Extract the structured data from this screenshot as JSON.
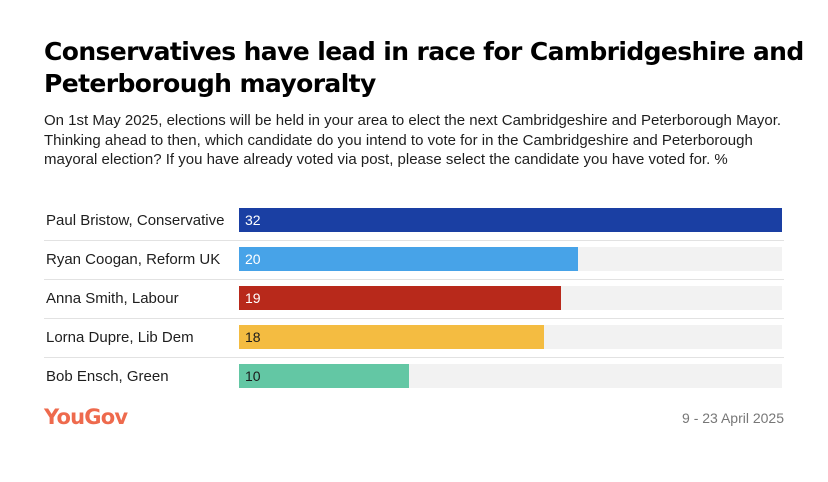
{
  "header": {
    "title": "Conservatives have lead in race for Cambridgeshire and Peterborough mayoralty",
    "subtitle": "On 1st May 2025, elections will be held in your area to elect the next Cambridgeshire and Peterborough Mayor. Thinking ahead to then, which candidate do you intend to vote for in the Cambridgeshire and Peterborough mayoral election? If you have already voted via post, please select the candidate you have voted for. %"
  },
  "chart_data": {
    "type": "bar",
    "orientation": "horizontal",
    "categories": [
      "Paul Bristow, Conservative",
      "Ryan Coogan, Reform UK",
      "Anna Smith, Labour",
      "Lorna Dupre, Lib Dem",
      "Bob Ensch, Green"
    ],
    "values": [
      32,
      20,
      19,
      18,
      10
    ],
    "colors": [
      "#1a3fa3",
      "#47a3e8",
      "#b8291b",
      "#f4bc41",
      "#63c7a4"
    ],
    "label_colors": [
      "#ffffff",
      "#ffffff",
      "#ffffff",
      "#1a1a1a",
      "#1a1a1a"
    ],
    "xlim": [
      0,
      32
    ],
    "track_color": "#f2f2f2",
    "grid": false
  },
  "footer": {
    "logo": "YouGov",
    "date": "9 - 23 April 2025"
  }
}
